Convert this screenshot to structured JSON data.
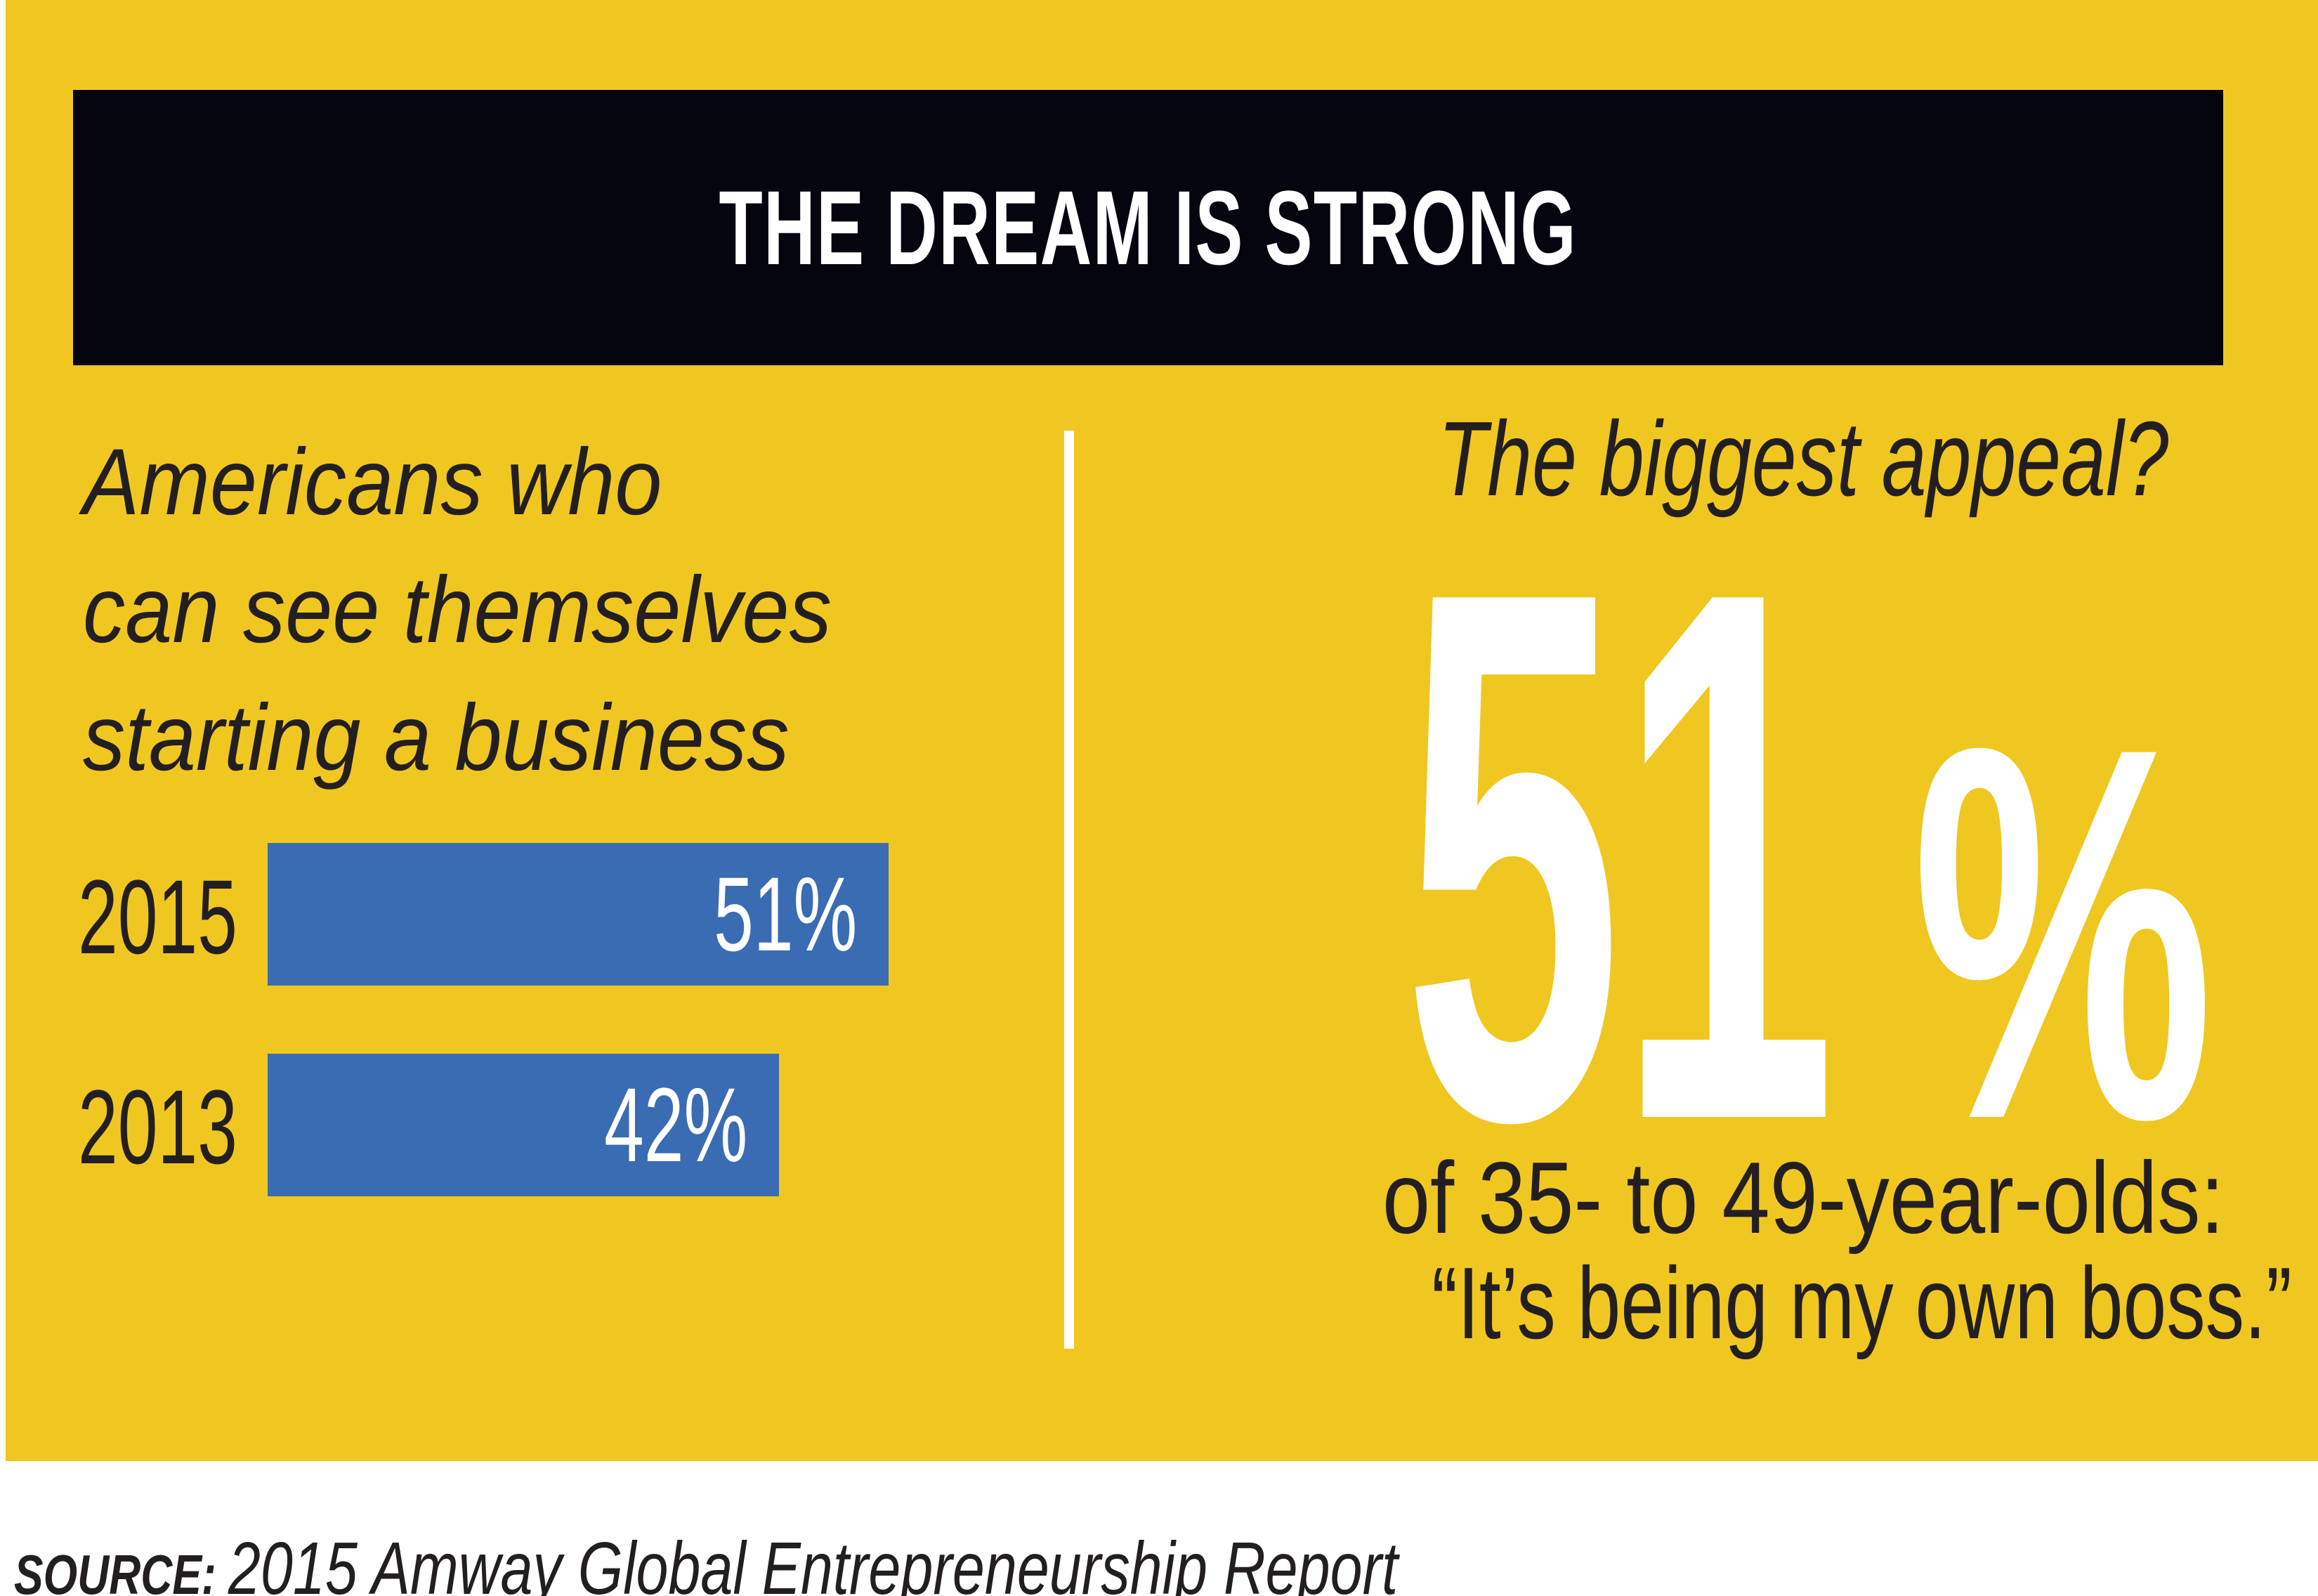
{
  "palette": {
    "panel_yellow": "#F0C720",
    "header_black": "#050510",
    "bar_blue": "#3A6CB3",
    "text_dark": "#231F20",
    "text_white": "#FFFFFF"
  },
  "header": {
    "title": "THE DREAM IS STRONG"
  },
  "left_section": {
    "heading_lines": [
      "Americans who",
      "can see themselves",
      "starting a business"
    ]
  },
  "chart_data": {
    "type": "bar",
    "orientation": "horizontal",
    "title": "Americans who can see themselves starting a business",
    "categories": [
      "2015",
      "2013"
    ],
    "values": [
      51,
      42
    ],
    "unit": "%",
    "data_labels": [
      "51%",
      "42%"
    ],
    "xlim": [
      0,
      51
    ],
    "bar_color": "#3A6CB3",
    "grid": false,
    "legend": false
  },
  "right_section": {
    "heading": "The biggest appeal?",
    "stat_number": "51",
    "stat_percent_sign": "%",
    "description_line1": "of 35- to 49-year-olds:",
    "description_line2": "“It’s being my own boss.”"
  },
  "footer": {
    "source_label": "SOURCE:",
    "source_text": "2015 Amway Global Entrepreneurship Report"
  }
}
